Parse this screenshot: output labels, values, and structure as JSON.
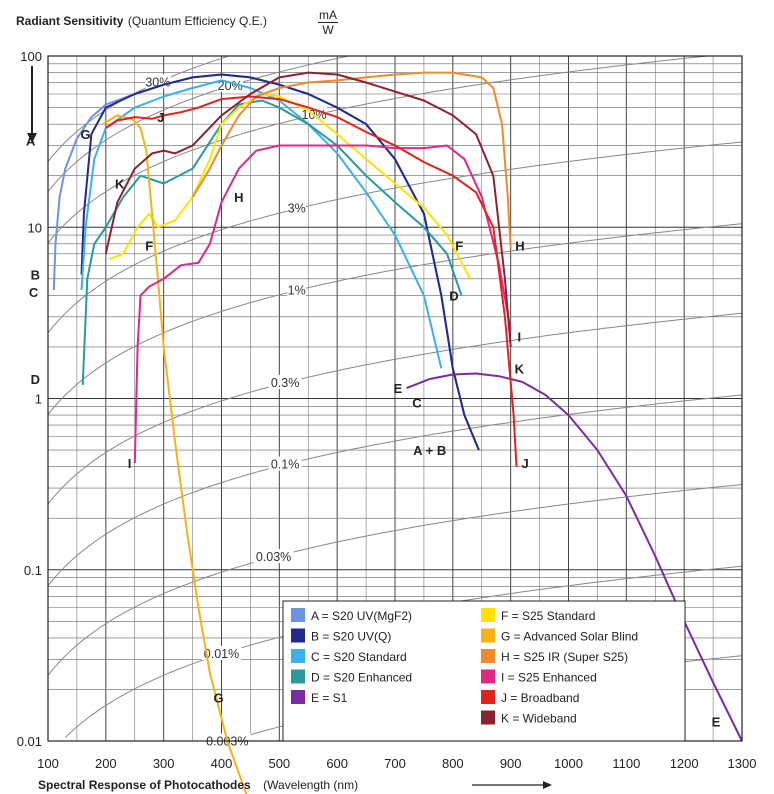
{
  "header": {
    "title_bold": "Radiant Sensitivity",
    "title_normal": "(Quantum Efficiency Q.E.)",
    "unit_num": "mA",
    "unit_den": "W"
  },
  "footer": {
    "xlabel_bold": "Spectral Response of Photocathodes",
    "xlabel_normal": "(Wavelength (nm)"
  },
  "chart_data": {
    "type": "line",
    "x_scale": "linear",
    "y_scale": "log",
    "xlim": [
      100,
      1300
    ],
    "ylim": [
      0.01,
      100
    ],
    "x_ticks": [
      100,
      200,
      300,
      400,
      500,
      600,
      700,
      800,
      900,
      1000,
      1100,
      1200,
      1300
    ],
    "y_ticks": [
      {
        "value": 100,
        "label": "100"
      },
      {
        "value": 10,
        "label": "10"
      },
      {
        "value": 1,
        "label": "1"
      },
      {
        "value": 0.1,
        "label": "0.1"
      },
      {
        "value": 0.01,
        "label": "0.01"
      }
    ],
    "grid": true,
    "qe_reference_lines": [
      {
        "qe": 0.3,
        "label": "30%",
        "label_at": 290
      },
      {
        "qe": 0.2,
        "label": "20%",
        "label_at": 415
      },
      {
        "qe": 0.1,
        "label": "10%",
        "label_at": 560
      },
      {
        "qe": 0.03,
        "label": "3%",
        "label_at": 530
      },
      {
        "qe": 0.01,
        "label": "1%",
        "label_at": 530
      },
      {
        "qe": 0.003,
        "label": "0.3%",
        "label_at": 510
      },
      {
        "qe": 0.001,
        "label": "0.1%",
        "label_at": 510
      },
      {
        "qe": 0.0003,
        "label": "0.03%",
        "label_at": 490
      },
      {
        "qe": 0.0001,
        "label": "0.01%",
        "label_at": 400
      },
      {
        "qe": 3e-05,
        "label": "0.003%",
        "label_at": 410
      }
    ],
    "series": [
      {
        "key": "A",
        "name": "A = S20 UV(MgF2)",
        "color": "#6f93dc",
        "points": [
          [
            110,
            4.3
          ],
          [
            113,
            8
          ],
          [
            120,
            15
          ],
          [
            130,
            22
          ],
          [
            150,
            33
          ],
          [
            175,
            44
          ],
          [
            200,
            52
          ],
          [
            250,
            60
          ],
          [
            300,
            68
          ],
          [
            350,
            75
          ],
          [
            400,
            78
          ],
          [
            450,
            75
          ],
          [
            500,
            68
          ],
          [
            550,
            60
          ],
          [
            600,
            50
          ],
          [
            650,
            40
          ],
          [
            700,
            25
          ],
          [
            750,
            12
          ],
          [
            780,
            4
          ],
          [
            800,
            1.5
          ],
          [
            820,
            0.8
          ],
          [
            845,
            0.5
          ]
        ]
      },
      {
        "key": "B",
        "name": "B = S20 UV(Q)",
        "color": "#232a8c",
        "points": [
          [
            158,
            5.3
          ],
          [
            162,
            12
          ],
          [
            175,
            35
          ],
          [
            200,
            50
          ],
          [
            250,
            60
          ],
          [
            300,
            68
          ],
          [
            350,
            75
          ],
          [
            400,
            78
          ],
          [
            450,
            75
          ],
          [
            500,
            68
          ],
          [
            550,
            60
          ],
          [
            600,
            50
          ],
          [
            650,
            40
          ],
          [
            700,
            25
          ],
          [
            750,
            12
          ],
          [
            780,
            4
          ],
          [
            800,
            1.5
          ],
          [
            820,
            0.8
          ],
          [
            845,
            0.5
          ]
        ]
      },
      {
        "key": "C",
        "name": "C = S20 Standard",
        "color": "#3bb0ea",
        "points": [
          [
            158,
            4.3
          ],
          [
            165,
            10
          ],
          [
            180,
            25
          ],
          [
            200,
            38
          ],
          [
            250,
            50
          ],
          [
            300,
            58
          ],
          [
            350,
            65
          ],
          [
            400,
            72
          ],
          [
            450,
            65
          ],
          [
            500,
            55
          ],
          [
            550,
            40
          ],
          [
            600,
            27
          ],
          [
            650,
            16
          ],
          [
            700,
            9
          ],
          [
            750,
            4
          ],
          [
            780,
            1.5
          ]
        ]
      },
      {
        "key": "D",
        "name": "D = S20 Enhanced",
        "color": "#2b9a9c",
        "points": [
          [
            160,
            1.2
          ],
          [
            168,
            5
          ],
          [
            180,
            8
          ],
          [
            200,
            10
          ],
          [
            230,
            15
          ],
          [
            260,
            20
          ],
          [
            300,
            18
          ],
          [
            350,
            22
          ],
          [
            400,
            40
          ],
          [
            430,
            52
          ],
          [
            470,
            55
          ],
          [
            500,
            50
          ],
          [
            550,
            40
          ],
          [
            600,
            30
          ],
          [
            650,
            20
          ],
          [
            700,
            14
          ],
          [
            750,
            10
          ],
          [
            790,
            7
          ],
          [
            815,
            4
          ]
        ]
      },
      {
        "key": "E",
        "name": "E = S1",
        "color": "#7a2da3",
        "points": [
          [
            720,
            1.15
          ],
          [
            760,
            1.3
          ],
          [
            800,
            1.38
          ],
          [
            840,
            1.4
          ],
          [
            880,
            1.35
          ],
          [
            920,
            1.25
          ],
          [
            960,
            1.05
          ],
          [
            1000,
            0.8
          ],
          [
            1050,
            0.5
          ],
          [
            1100,
            0.27
          ],
          [
            1150,
            0.12
          ],
          [
            1200,
            0.05
          ],
          [
            1250,
            0.022
          ],
          [
            1300,
            0.01
          ]
        ]
      },
      {
        "key": "F",
        "name": "F = S25 Standard",
        "color": "#ffe400",
        "points": [
          [
            205,
            6.5
          ],
          [
            230,
            7
          ],
          [
            255,
            10
          ],
          [
            275,
            12
          ],
          [
            290,
            10
          ],
          [
            320,
            11
          ],
          [
            350,
            15
          ],
          [
            380,
            25
          ],
          [
            400,
            40
          ],
          [
            430,
            50
          ],
          [
            470,
            60
          ],
          [
            500,
            58
          ],
          [
            550,
            48
          ],
          [
            600,
            35
          ],
          [
            650,
            25
          ],
          [
            700,
            18
          ],
          [
            750,
            13
          ],
          [
            790,
            9
          ],
          [
            830,
            5
          ]
        ]
      },
      {
        "key": "G",
        "name": "G = Advanced Solar Blind",
        "color": "#f7b218",
        "points": [
          [
            195,
            40
          ],
          [
            220,
            45
          ],
          [
            245,
            43
          ],
          [
            260,
            38
          ],
          [
            270,
            28
          ],
          [
            280,
            12
          ],
          [
            290,
            5
          ],
          [
            300,
            2
          ],
          [
            320,
            0.55
          ],
          [
            340,
            0.17
          ],
          [
            360,
            0.06
          ],
          [
            380,
            0.025
          ],
          [
            410,
            0.01
          ],
          [
            450,
            0.0042
          ]
        ]
      },
      {
        "key": "H",
        "name": "H = S25 IR (Super S25)",
        "color": "#f18a2b",
        "points": [
          [
            350,
            15
          ],
          [
            380,
            22
          ],
          [
            400,
            30
          ],
          [
            430,
            45
          ],
          [
            460,
            58
          ],
          [
            500,
            65
          ],
          [
            550,
            70
          ],
          [
            600,
            72
          ],
          [
            650,
            75
          ],
          [
            700,
            78
          ],
          [
            750,
            80
          ],
          [
            800,
            80
          ],
          [
            850,
            75
          ],
          [
            870,
            65
          ],
          [
            885,
            40
          ],
          [
            895,
            15
          ],
          [
            900,
            7.5
          ]
        ]
      },
      {
        "key": "I",
        "name": "I = S25 Enhanced",
        "color": "#e12882",
        "points": [
          [
            250,
            0.42
          ],
          [
            255,
            2
          ],
          [
            260,
            4
          ],
          [
            275,
            4.5
          ],
          [
            300,
            5
          ],
          [
            330,
            6
          ],
          [
            360,
            6.2
          ],
          [
            380,
            8
          ],
          [
            400,
            14
          ],
          [
            430,
            22
          ],
          [
            460,
            28
          ],
          [
            500,
            30
          ],
          [
            550,
            30
          ],
          [
            600,
            30
          ],
          [
            650,
            30
          ],
          [
            700,
            29
          ],
          [
            750,
            29
          ],
          [
            790,
            30
          ],
          [
            820,
            25
          ],
          [
            850,
            15
          ],
          [
            880,
            6
          ],
          [
            900,
            2.5
          ]
        ]
      },
      {
        "key": "J",
        "name": "J = Broadband",
        "color": "#e1221f",
        "points": [
          [
            200,
            38
          ],
          [
            220,
            42
          ],
          [
            250,
            44
          ],
          [
            280,
            43
          ],
          [
            300,
            45
          ],
          [
            330,
            47
          ],
          [
            360,
            50
          ],
          [
            400,
            56
          ],
          [
            450,
            58
          ],
          [
            500,
            56
          ],
          [
            550,
            50
          ],
          [
            600,
            44
          ],
          [
            650,
            36
          ],
          [
            700,
            30
          ],
          [
            750,
            24
          ],
          [
            800,
            20
          ],
          [
            840,
            16
          ],
          [
            870,
            10
          ],
          [
            890,
            3
          ],
          [
            905,
            0.8
          ],
          [
            910,
            0.4
          ]
        ]
      },
      {
        "key": "K",
        "name": "K = Wideband",
        "color": "#8a2232",
        "points": [
          [
            200,
            7
          ],
          [
            220,
            14
          ],
          [
            250,
            22
          ],
          [
            280,
            27
          ],
          [
            300,
            28
          ],
          [
            320,
            27
          ],
          [
            350,
            30
          ],
          [
            400,
            45
          ],
          [
            450,
            60
          ],
          [
            500,
            75
          ],
          [
            550,
            80
          ],
          [
            600,
            78
          ],
          [
            650,
            70
          ],
          [
            700,
            62
          ],
          [
            750,
            55
          ],
          [
            800,
            45
          ],
          [
            840,
            35
          ],
          [
            870,
            20
          ],
          [
            890,
            5
          ],
          [
            900,
            2
          ]
        ]
      }
    ],
    "curve_letter_labels": [
      {
        "key": "A",
        "at": [
          70,
          32
        ]
      },
      {
        "key": "B",
        "at": [
          78,
          5.3
        ]
      },
      {
        "key": "C",
        "at": [
          75,
          4.2
        ]
      },
      {
        "key": "D",
        "at": [
          78,
          1.3
        ]
      },
      {
        "key": "D",
        "at": [
          802,
          4
        ]
      },
      {
        "key": "E",
        "at": [
          705,
          1.15
        ]
      },
      {
        "key": "E",
        "at": [
          1255,
          0.013
        ]
      },
      {
        "key": "F",
        "at": [
          275,
          7.8
        ]
      },
      {
        "key": "F",
        "at": [
          811,
          7.8
        ]
      },
      {
        "key": "G",
        "at": [
          165,
          35
        ]
      },
      {
        "key": "G",
        "at": [
          395,
          0.018
        ]
      },
      {
        "key": "H",
        "at": [
          430,
          15
        ]
      },
      {
        "key": "H",
        "at": [
          916,
          7.8
        ]
      },
      {
        "key": "I",
        "at": [
          241,
          0.42
        ]
      },
      {
        "key": "I",
        "at": [
          915,
          2.3
        ]
      },
      {
        "key": "J",
        "at": [
          295,
          44
        ]
      },
      {
        "key": "J",
        "at": [
          925,
          0.42
        ]
      },
      {
        "key": "K",
        "at": [
          224,
          18
        ]
      },
      {
        "key": "K",
        "at": [
          915,
          1.5
        ]
      },
      {
        "key": "A + B",
        "at": [
          760,
          0.5
        ]
      },
      {
        "key": "C",
        "at": [
          738,
          0.95
        ]
      }
    ],
    "legend": {
      "placement": "bottom-center",
      "col1": [
        "A = S20 UV(MgF2)",
        "B = S20 UV(Q)",
        "C = S20 Standard",
        "D = S20 Enhanced",
        "E = S1"
      ],
      "col2": [
        "F = S25 Standard",
        "G = Advanced Solar Blind",
        "H = S25 IR (Super S25)",
        "I = S25 Enhanced",
        "J = Broadband",
        "K = Wideband"
      ]
    }
  }
}
